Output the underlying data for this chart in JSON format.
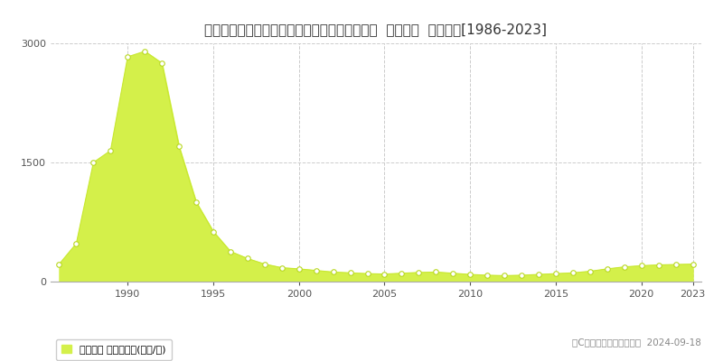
{
  "title": "北海道札幌市中央区南６条西４丁目５番３２外  公示地価  地価推移[1986-2023]",
  "years": [
    1986,
    1987,
    1988,
    1989,
    1990,
    1991,
    1992,
    1993,
    1994,
    1995,
    1996,
    1997,
    1998,
    1999,
    2000,
    2001,
    2002,
    2003,
    2004,
    2005,
    2006,
    2007,
    2008,
    2009,
    2010,
    2011,
    2012,
    2013,
    2014,
    2015,
    2016,
    2017,
    2018,
    2019,
    2020,
    2021,
    2022,
    2023
  ],
  "values": [
    220,
    480,
    1500,
    1650,
    2830,
    2900,
    2750,
    1700,
    1000,
    630,
    380,
    290,
    220,
    175,
    160,
    140,
    120,
    110,
    100,
    95,
    105,
    115,
    120,
    105,
    90,
    80,
    75,
    80,
    90,
    100,
    110,
    130,
    160,
    185,
    200,
    210,
    215,
    220
  ],
  "fill_color": "#d4f04a",
  "line_color": "#c8e830",
  "marker_color": "#ffffff",
  "marker_edge_color": "#b8d820",
  "marker_size": 4,
  "ylim": [
    0,
    3000
  ],
  "yticks": [
    0,
    1500,
    3000
  ],
  "ytick_labels": [
    "0",
    "1500",
    "3000"
  ],
  "xlim_min": 1985.5,
  "xlim_max": 2023.5,
  "xticks": [
    1990,
    1995,
    2000,
    2005,
    2010,
    2015,
    2020,
    2023
  ],
  "grid_color": "#cccccc",
  "bg_color": "#ffffff",
  "legend_label": "公示地価 平均坪単価(万円/坪)",
  "copyright_text": "（C）土地価格ドットコム  2024-09-18",
  "title_fontsize": 11,
  "tick_fontsize": 8,
  "legend_fontsize": 8,
  "copyright_fontsize": 7.5
}
